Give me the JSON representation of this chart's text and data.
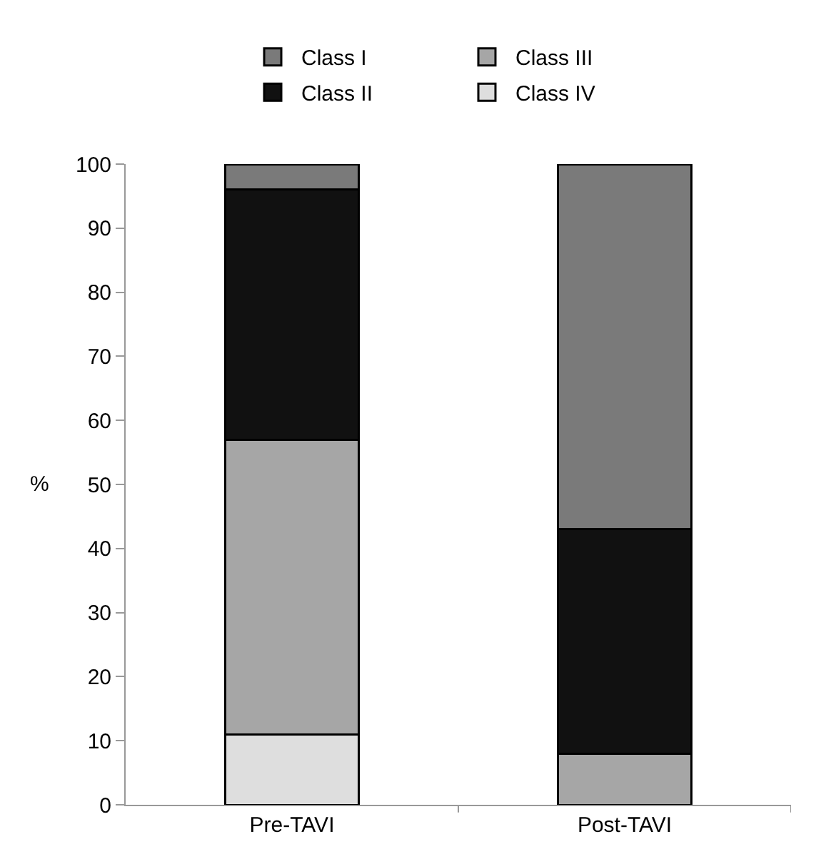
{
  "chart_data": {
    "type": "bar",
    "stacked": true,
    "categories": [
      "Pre-TAVI",
      "Post-TAVI"
    ],
    "ylabel": "%",
    "ylim": [
      0,
      100
    ],
    "yticks": [
      0,
      10,
      20,
      30,
      40,
      50,
      60,
      70,
      80,
      90,
      100
    ],
    "legend": "top",
    "series": [
      {
        "name": "Class IV",
        "color": "#dedede",
        "values": [
          11,
          0
        ]
      },
      {
        "name": "Class III",
        "color": "#a6a6a6",
        "values": [
          46,
          8
        ]
      },
      {
        "name": "Class II",
        "color": "#111111",
        "values": [
          39,
          35
        ]
      },
      {
        "name": "Class I",
        "color": "#7a7a7a",
        "values": [
          4,
          57
        ]
      }
    ]
  }
}
